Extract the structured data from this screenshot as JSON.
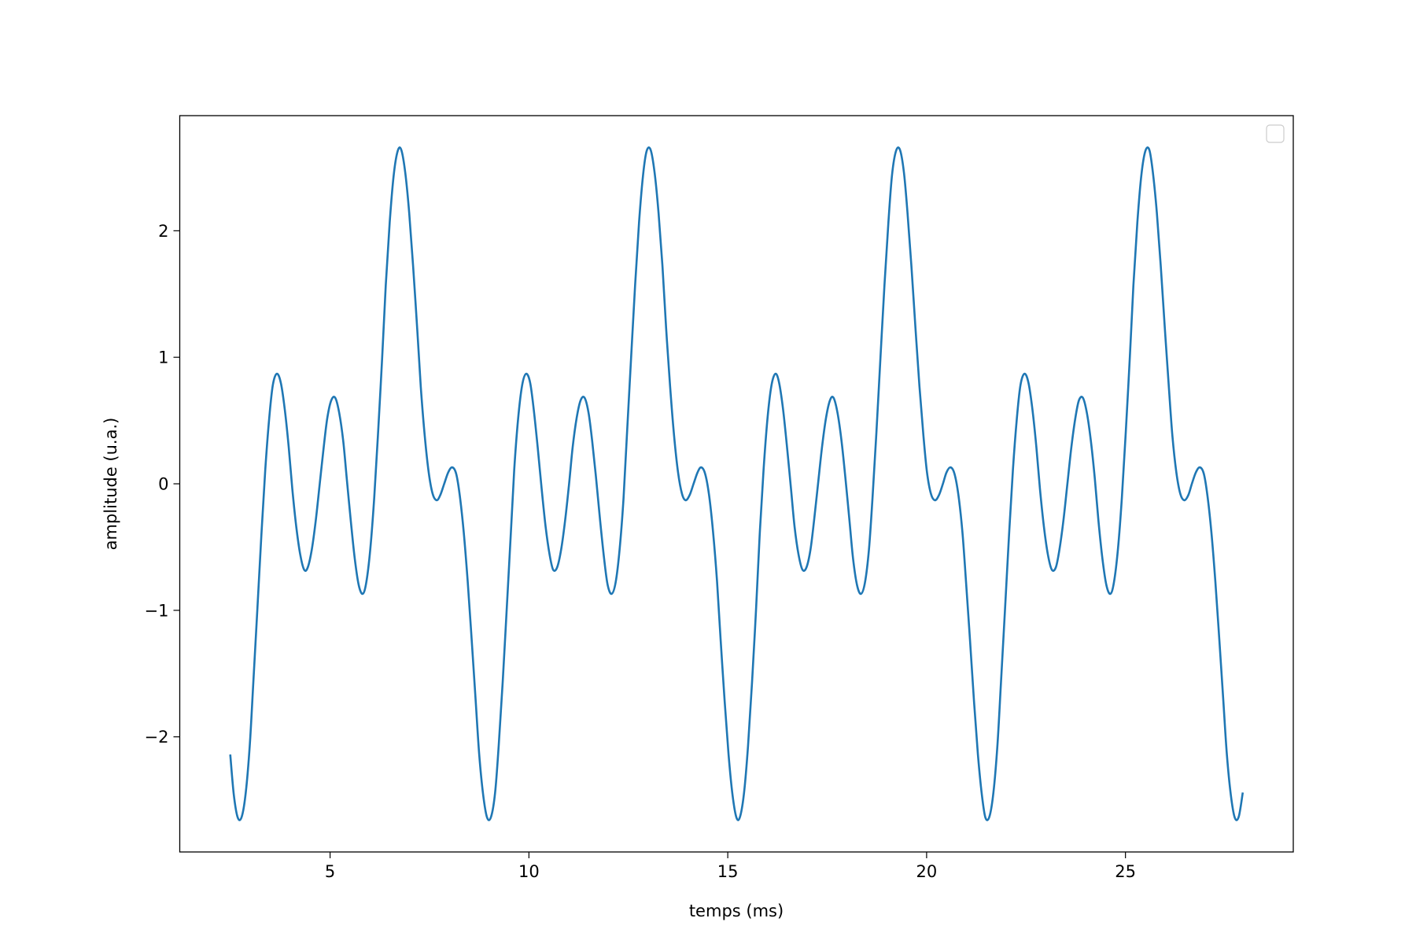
{
  "chart_data": {
    "type": "line",
    "xlabel": "temps (ms)",
    "ylabel": "amplitude (u.a.)",
    "legend": "upper right",
    "xlim": [
      1.22,
      29.22
    ],
    "xticks": [
      5,
      10,
      15,
      20,
      25
    ],
    "ylim": [
      -2.91,
      2.91
    ],
    "yticks": [
      {
        "value": -2,
        "label": "−2"
      },
      {
        "value": -1,
        "label": "−1"
      },
      0,
      1,
      2
    ],
    "x": [
      2.49,
      2.58,
      2.68,
      2.78,
      2.88,
      2.98,
      3.07,
      3.17,
      3.27,
      3.37,
      3.47,
      3.56,
      3.66,
      3.76,
      3.86,
      3.96,
      4.05,
      4.15,
      4.25,
      4.35,
      4.44,
      4.54,
      4.64,
      4.74,
      4.84,
      4.93,
      5.03,
      5.13,
      5.23,
      5.33,
      5.42,
      5.52,
      5.62,
      5.72,
      5.82,
      5.91,
      6.01,
      6.11,
      6.21,
      6.31,
      6.4,
      6.5,
      6.6,
      6.7,
      6.79,
      6.89,
      6.99,
      7.09,
      7.19,
      7.28,
      7.38,
      7.48,
      7.58,
      7.68,
      7.77,
      7.87,
      7.97,
      8.07,
      8.17,
      8.26,
      8.36,
      8.46,
      8.56,
      8.66,
      8.75,
      8.85,
      8.95,
      9.05,
      9.15,
      9.24,
      9.34,
      9.44,
      9.54,
      9.63,
      9.73,
      9.83,
      9.93,
      10.03,
      10.12,
      10.22,
      10.32,
      10.42,
      10.52,
      10.61,
      10.71,
      10.81,
      10.91,
      11.01,
      11.1,
      11.2,
      11.3,
      11.4,
      11.5,
      11.59,
      11.69,
      11.79,
      11.89,
      11.98,
      12.08,
      12.18,
      12.28,
      12.38,
      12.47,
      12.57,
      12.67,
      12.77,
      12.87,
      12.96,
      13.06,
      13.16,
      13.26,
      13.36,
      13.45,
      13.55,
      13.65,
      13.75,
      13.85,
      13.94,
      14.04,
      14.14,
      14.24,
      14.33,
      14.43,
      14.53,
      14.63,
      14.73,
      14.82,
      14.92,
      15.02,
      15.12,
      15.22,
      15.31,
      15.41,
      15.51,
      15.61,
      15.71,
      15.8,
      15.9,
      16.0,
      16.1,
      16.2,
      16.29,
      16.39,
      16.49,
      16.59,
      16.68,
      16.78,
      16.88,
      16.98,
      17.08,
      17.17,
      17.27,
      17.37,
      17.47,
      17.57,
      17.66,
      17.76,
      17.86,
      17.96,
      18.06,
      18.15,
      18.25,
      18.35,
      18.45,
      18.55,
      18.64,
      18.74,
      18.84,
      18.94,
      19.04,
      19.13,
      19.23,
      19.33,
      19.43,
      19.52,
      19.62,
      19.72,
      19.82,
      19.92,
      20.01,
      20.11,
      20.21,
      20.31,
      20.41,
      20.5,
      20.6,
      20.7,
      20.8,
      20.9,
      20.99,
      21.09,
      21.19,
      21.29,
      21.39,
      21.48,
      21.58,
      21.68,
      21.78,
      21.87,
      21.97,
      22.07,
      22.17,
      22.27,
      22.36,
      22.46,
      22.56,
      22.66,
      22.76,
      22.85,
      22.95,
      23.05,
      23.15,
      23.25,
      23.34,
      23.44,
      23.54,
      23.64,
      23.74,
      23.83,
      23.93,
      24.03,
      24.13,
      24.23,
      24.32,
      24.42,
      24.52,
      24.62,
      24.71,
      24.81,
      24.91,
      25.01,
      25.11,
      25.2,
      25.3,
      25.4,
      25.5,
      25.6,
      25.69,
      25.79,
      25.89,
      25.99,
      26.09,
      26.18,
      26.28,
      26.38,
      26.48,
      26.58,
      26.67,
      26.77,
      26.87,
      26.97,
      27.06,
      27.16,
      27.26,
      27.36,
      27.46,
      27.55,
      27.65,
      27.75,
      27.85,
      27.95
    ],
    "series": [
      {
        "color": "#1f77b4",
        "values": [
          -2.14,
          -2.46,
          -2.64,
          -2.63,
          -2.44,
          -2.07,
          -1.57,
          -1,
          -0.42,
          0.11,
          0.52,
          0.78,
          0.87,
          0.8,
          0.59,
          0.29,
          -0.04,
          -0.34,
          -0.56,
          -0.68,
          -0.66,
          -0.52,
          -0.29,
          0,
          0.29,
          0.52,
          0.66,
          0.68,
          0.56,
          0.34,
          0.04,
          -0.29,
          -0.59,
          -0.8,
          -0.87,
          -0.78,
          -0.52,
          -0.11,
          0.42,
          1,
          1.57,
          2.07,
          2.44,
          2.63,
          2.64,
          2.46,
          2.14,
          1.71,
          1.23,
          0.77,
          0.38,
          0.09,
          -0.08,
          -0.13,
          -0.09,
          0,
          0.09,
          0.13,
          0.08,
          -0.09,
          -0.38,
          -0.77,
          -1.23,
          -1.71,
          -2.14,
          -2.46,
          -2.64,
          -2.63,
          -2.44,
          -2.07,
          -1.57,
          -1,
          -0.42,
          0.11,
          0.52,
          0.78,
          0.87,
          0.8,
          0.59,
          0.29,
          -0.04,
          -0.34,
          -0.56,
          -0.68,
          -0.66,
          -0.52,
          -0.29,
          0,
          0.29,
          0.52,
          0.66,
          0.68,
          0.56,
          0.34,
          0.04,
          -0.29,
          -0.59,
          -0.8,
          -0.87,
          -0.78,
          -0.52,
          -0.11,
          0.42,
          1,
          1.57,
          2.07,
          2.44,
          2.63,
          2.64,
          2.46,
          2.14,
          1.71,
          1.23,
          0.77,
          0.38,
          0.09,
          -0.08,
          -0.13,
          -0.09,
          0,
          0.09,
          0.13,
          0.08,
          -0.09,
          -0.38,
          -0.77,
          -1.23,
          -1.71,
          -2.14,
          -2.46,
          -2.64,
          -2.63,
          -2.44,
          -2.07,
          -1.57,
          -1,
          -0.42,
          0.11,
          0.52,
          0.78,
          0.87,
          0.8,
          0.59,
          0.29,
          -0.04,
          -0.34,
          -0.56,
          -0.68,
          -0.66,
          -0.52,
          -0.29,
          0,
          0.29,
          0.52,
          0.66,
          0.68,
          0.56,
          0.34,
          0.04,
          -0.29,
          -0.59,
          -0.8,
          -0.87,
          -0.78,
          -0.52,
          -0.11,
          0.42,
          1,
          1.57,
          2.07,
          2.44,
          2.63,
          2.64,
          2.46,
          2.14,
          1.71,
          1.23,
          0.77,
          0.38,
          0.09,
          -0.08,
          -0.13,
          -0.09,
          0,
          0.09,
          0.13,
          0.08,
          -0.09,
          -0.38,
          -0.77,
          -1.23,
          -1.71,
          -2.14,
          -2.46,
          -2.64,
          -2.63,
          -2.44,
          -2.07,
          -1.57,
          -1,
          -0.42,
          0.11,
          0.52,
          0.78,
          0.87,
          0.8,
          0.59,
          0.29,
          -0.04,
          -0.34,
          -0.56,
          -0.68,
          -0.66,
          -0.52,
          -0.29,
          0,
          0.29,
          0.52,
          0.66,
          0.68,
          0.56,
          0.34,
          0.04,
          -0.29,
          -0.59,
          -0.8,
          -0.87,
          -0.78,
          -0.52,
          -0.11,
          0.42,
          1,
          1.57,
          2.07,
          2.44,
          2.63,
          2.64,
          2.46,
          2.14,
          1.71,
          1.23,
          0.77,
          0.38,
          0.09,
          -0.08,
          -0.13,
          -0.09,
          0,
          0.09,
          0.13,
          0.08,
          -0.09,
          -0.38,
          -0.77,
          -1.23,
          -1.71,
          -2.14,
          -2.46,
          -2.64,
          -2.63,
          -2.44
        ]
      }
    ]
  }
}
